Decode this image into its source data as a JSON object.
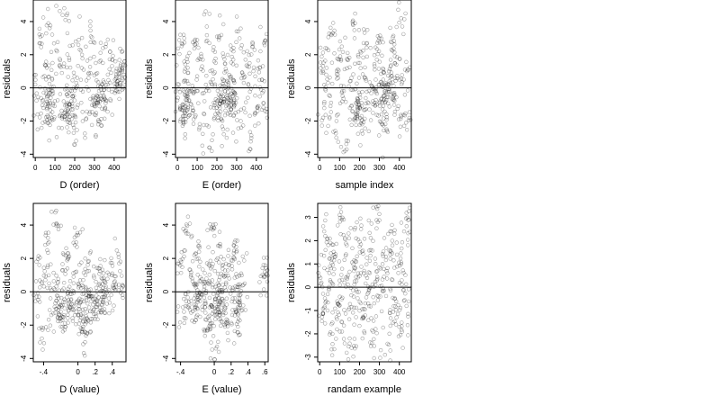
{
  "figure": {
    "background": "#ffffff",
    "point_color": "#000000",
    "point_opacity": 0.38,
    "reference_line_color": "#000000"
  },
  "chart_data": [
    {
      "type": "scatter",
      "xlabel": "D (order)",
      "ylabel": "residuals",
      "xlim": [
        -10,
        460
      ],
      "ylim": [
        -4.2,
        5.3
      ],
      "xticks": [
        0,
        100,
        200,
        300,
        400
      ],
      "yticks": [
        -4,
        -2,
        0,
        2,
        4
      ],
      "hline": 0,
      "n_points": 460,
      "pattern": "ordered residuals forming rising diagonal streaks",
      "points": [
        [
          0,
          0.2
        ],
        [
          12,
          -1.6
        ],
        [
          24,
          2.7
        ],
        [
          37,
          -0.8
        ],
        [
          49,
          1.4
        ],
        [
          61,
          -2.1
        ],
        [
          73,
          3.6
        ],
        [
          86,
          0.5
        ],
        [
          98,
          -1.1
        ],
        [
          110,
          2.2
        ],
        [
          123,
          -1.7
        ],
        [
          135,
          0.9
        ],
        [
          147,
          4.8
        ],
        [
          159,
          -0.4
        ],
        [
          172,
          1.8
        ],
        [
          184,
          -1.3
        ],
        [
          196,
          -2.4
        ],
        [
          208,
          0.3
        ],
        [
          221,
          2.9
        ],
        [
          233,
          -0.9
        ],
        [
          245,
          1.1
        ],
        [
          257,
          -1.9
        ],
        [
          270,
          0.6
        ],
        [
          282,
          3.1
        ],
        [
          294,
          -0.5
        ],
        [
          306,
          1.5
        ],
        [
          319,
          -2.2
        ],
        [
          331,
          0.1
        ],
        [
          343,
          2.4
        ],
        [
          355,
          -1.2
        ],
        [
          368,
          0.8
        ],
        [
          380,
          -0.7
        ],
        [
          392,
          1.7
        ],
        [
          404,
          -0.3
        ],
        [
          417,
          0.4
        ],
        [
          429,
          0.9
        ],
        [
          441,
          1.2
        ],
        [
          453,
          1.6
        ],
        [
          60,
          -1.2
        ],
        [
          66,
          -1.0
        ],
        [
          72,
          -0.8
        ],
        [
          78,
          -0.6
        ],
        [
          84,
          -0.4
        ],
        [
          150,
          -1.9
        ],
        [
          158,
          -1.6
        ],
        [
          166,
          -1.3
        ],
        [
          174,
          -1.0
        ],
        [
          182,
          -0.8
        ],
        [
          190,
          -0.5
        ],
        [
          300,
          -1.1
        ],
        [
          310,
          -0.9
        ],
        [
          320,
          -0.7
        ],
        [
          330,
          -0.5
        ],
        [
          340,
          -0.3
        ],
        [
          350,
          -0.1
        ],
        [
          420,
          0.1
        ],
        [
          430,
          0.3
        ],
        [
          440,
          0.6
        ]
      ]
    },
    {
      "type": "scatter",
      "xlabel": "E (order)",
      "ylabel": "residuals",
      "xlim": [
        -10,
        460
      ],
      "ylim": [
        -4.2,
        5.3
      ],
      "xticks": [
        0,
        100,
        200,
        300,
        400
      ],
      "yticks": [
        -4,
        -2,
        0,
        2,
        4
      ],
      "hline": 0,
      "n_points": 460,
      "pattern": "ordered residuals with short diagonal streaks",
      "points": [
        [
          2,
          -0.6
        ],
        [
          14,
          3.2
        ],
        [
          27,
          -1.7
        ],
        [
          39,
          0.4
        ],
        [
          51,
          1.9
        ],
        [
          63,
          -0.2
        ],
        [
          76,
          -1.5
        ],
        [
          88,
          2.6
        ],
        [
          100,
          0.7
        ],
        [
          112,
          -2.4
        ],
        [
          125,
          1.3
        ],
        [
          137,
          -0.8
        ],
        [
          149,
          3.7
        ],
        [
          161,
          -3.6
        ],
        [
          174,
          0.2
        ],
        [
          186,
          1.6
        ],
        [
          198,
          -1.2
        ],
        [
          210,
          2.9
        ],
        [
          223,
          -0.4
        ],
        [
          235,
          -2.8
        ],
        [
          247,
          1.0
        ],
        [
          259,
          0.3
        ],
        [
          272,
          -1.3
        ],
        [
          284,
          2.2
        ],
        [
          296,
          -0.9
        ],
        [
          308,
          3.4
        ],
        [
          321,
          -2.0
        ],
        [
          333,
          0.8
        ],
        [
          345,
          1.7
        ],
        [
          357,
          -0.6
        ],
        [
          370,
          -3.7
        ],
        [
          382,
          2.5
        ],
        [
          394,
          0.1
        ],
        [
          406,
          -1.4
        ],
        [
          419,
          1.2
        ],
        [
          431,
          -0.3
        ],
        [
          443,
          2.8
        ],
        [
          455,
          -1.8
        ],
        [
          30,
          -1.7
        ],
        [
          36,
          -1.4
        ],
        [
          42,
          -1.1
        ],
        [
          48,
          -0.8
        ],
        [
          54,
          -0.5
        ],
        [
          200,
          -1.4
        ],
        [
          210,
          -1.1
        ],
        [
          220,
          -0.8
        ],
        [
          230,
          -0.5
        ],
        [
          240,
          -0.2
        ],
        [
          260,
          -0.9
        ],
        [
          270,
          -0.7
        ],
        [
          280,
          -0.5
        ],
        [
          290,
          -0.3
        ]
      ]
    },
    {
      "type": "scatter",
      "xlabel": "sample index",
      "ylabel": "residuals",
      "xlim": [
        -10,
        460
      ],
      "ylim": [
        -4.2,
        5.3
      ],
      "xticks": [
        0,
        100,
        200,
        300,
        400
      ],
      "yticks": [
        -4,
        -2,
        0,
        2,
        4
      ],
      "hline": 0,
      "n_points": 460,
      "pattern": "residuals against sample index",
      "points": [
        [
          5,
          1.2
        ],
        [
          17,
          -1.8
        ],
        [
          29,
          2.4
        ],
        [
          42,
          0.3
        ],
        [
          54,
          -1.1
        ],
        [
          66,
          3.3
        ],
        [
          78,
          -2.6
        ],
        [
          91,
          0.8
        ],
        [
          103,
          1.9
        ],
        [
          115,
          -0.5
        ],
        [
          128,
          -3.8
        ],
        [
          140,
          2.1
        ],
        [
          152,
          0.4
        ],
        [
          164,
          -1.4
        ],
        [
          177,
          3.9
        ],
        [
          189,
          -0.8
        ],
        [
          201,
          1.5
        ],
        [
          213,
          -2.2
        ],
        [
          226,
          0.6
        ],
        [
          238,
          2.7
        ],
        [
          250,
          -1.3
        ],
        [
          262,
          0.1
        ],
        [
          275,
          -0.9
        ],
        [
          287,
          1.7
        ],
        [
          299,
          3.0
        ],
        [
          311,
          -1.6
        ],
        [
          324,
          0.9
        ],
        [
          336,
          -2.5
        ],
        [
          348,
          0.2
        ],
        [
          360,
          2.3
        ],
        [
          373,
          -0.7
        ],
        [
          385,
          1.4
        ],
        [
          397,
          -1.9
        ],
        [
          409,
          4.2
        ],
        [
          422,
          0.5
        ],
        [
          434,
          -2.1
        ],
        [
          446,
          1.1
        ],
        [
          300,
          -0.9
        ],
        [
          310,
          -0.7
        ],
        [
          320,
          -0.5
        ],
        [
          330,
          -0.2
        ],
        [
          340,
          0.1
        ],
        [
          350,
          0.4
        ],
        [
          360,
          0.7
        ],
        [
          180,
          -1.8
        ],
        [
          190,
          -1.5
        ],
        [
          200,
          -1.2
        ],
        [
          210,
          -0.9
        ]
      ]
    },
    {
      "type": "scatter",
      "xlabel": "D (value)",
      "ylabel": "residuals",
      "xlim": [
        -0.52,
        0.56
      ],
      "ylim": [
        -4.2,
        5.3
      ],
      "xticks": [
        -0.4,
        0.0,
        0.2,
        0.4
      ],
      "yticks": [
        -4,
        -2,
        0,
        2,
        4
      ],
      "hline": 0,
      "n_points": 460,
      "pattern": "residuals in vertical columns at discrete D values",
      "points": [
        [
          -0.48,
          -0.3
        ],
        [
          -0.45,
          1.6
        ],
        [
          -0.42,
          -2.8
        ],
        [
          -0.38,
          0.7
        ],
        [
          -0.35,
          2.9
        ],
        [
          -0.31,
          -1.4
        ],
        [
          -0.28,
          0.2
        ],
        [
          -0.25,
          4.1
        ],
        [
          -0.22,
          -0.9
        ],
        [
          -0.18,
          1.3
        ],
        [
          -0.15,
          -1.9
        ],
        [
          -0.12,
          2.3
        ],
        [
          -0.08,
          -0.5
        ],
        [
          -0.05,
          0.9
        ],
        [
          -0.02,
          -1.2
        ],
        [
          0.0,
          3.4
        ],
        [
          0.02,
          -0.7
        ],
        [
          0.05,
          0.4
        ],
        [
          0.08,
          -2.4
        ],
        [
          0.12,
          1.8
        ],
        [
          0.15,
          -0.3
        ],
        [
          0.18,
          -1.1
        ],
        [
          0.21,
          0.6
        ],
        [
          0.25,
          1.4
        ],
        [
          0.28,
          -0.8
        ],
        [
          0.32,
          0.2
        ],
        [
          0.36,
          -0.4
        ],
        [
          0.4,
          1.1
        ],
        [
          0.44,
          0.3
        ],
        [
          0.48,
          1.7
        ],
        [
          0.52,
          -0.2
        ],
        [
          -0.2,
          -1.6
        ],
        [
          -0.2,
          -1.2
        ],
        [
          -0.2,
          -0.8
        ],
        [
          -0.1,
          -0.9
        ],
        [
          -0.1,
          -0.6
        ],
        [
          0.06,
          -2.1
        ],
        [
          0.06,
          -1.8
        ],
        [
          0.06,
          -1.5
        ],
        [
          0.1,
          -0.5
        ],
        [
          0.1,
          -0.2
        ],
        [
          0.22,
          -0.9
        ],
        [
          0.22,
          -0.6
        ],
        [
          0.3,
          -0.3
        ],
        [
          0.3,
          0.0
        ]
      ]
    },
    {
      "type": "scatter",
      "xlabel": "E (value)",
      "ylabel": "residuals",
      "xlim": [
        -0.46,
        0.64
      ],
      "ylim": [
        -4.2,
        5.3
      ],
      "xticks": [
        -0.4,
        0.0,
        0.2,
        0.4,
        0.6
      ],
      "yticks": [
        -4,
        -2,
        0,
        2,
        4
      ],
      "hline": 0,
      "n_points": 460,
      "pattern": "residuals in vertical columns at discrete E values",
      "points": [
        [
          -0.4,
          1.9
        ],
        [
          -0.36,
          -1.2
        ],
        [
          -0.33,
          3.5
        ],
        [
          -0.3,
          -0.6
        ],
        [
          -0.26,
          0.8
        ],
        [
          -0.22,
          -1.7
        ],
        [
          -0.18,
          2.4
        ],
        [
          -0.15,
          -0.2
        ],
        [
          -0.12,
          0.6
        ],
        [
          -0.08,
          -2.3
        ],
        [
          -0.04,
          1.4
        ],
        [
          -0.02,
          -0.9
        ],
        [
          0.0,
          3.8
        ],
        [
          0.02,
          -3.4
        ],
        [
          0.04,
          0.5
        ],
        [
          0.06,
          -1.4
        ],
        [
          0.08,
          2.1
        ],
        [
          0.1,
          -0.7
        ],
        [
          0.12,
          0.9
        ],
        [
          0.14,
          -1.9
        ],
        [
          0.18,
          1.6
        ],
        [
          0.22,
          -0.4
        ],
        [
          0.26,
          2.7
        ],
        [
          0.28,
          -2.1
        ],
        [
          0.3,
          0.3
        ],
        [
          0.32,
          1.1
        ],
        [
          0.6,
          1.2
        ],
        [
          0.6,
          0.9
        ],
        [
          -0.2,
          -0.2
        ],
        [
          -0.2,
          0.1
        ],
        [
          -0.1,
          -0.7
        ],
        [
          0.05,
          -1.2
        ],
        [
          0.05,
          -0.8
        ],
        [
          0.05,
          -0.4
        ],
        [
          0.28,
          -1.3
        ],
        [
          0.28,
          -0.6
        ]
      ]
    },
    {
      "type": "scatter",
      "xlabel": "randam example",
      "ylabel": "residuals",
      "xlim": [
        -10,
        460
      ],
      "ylim": [
        -3.2,
        3.6
      ],
      "xticks": [
        0,
        100,
        200,
        300,
        400
      ],
      "yticks": [
        -3,
        -2,
        -1,
        0,
        1,
        2,
        3
      ],
      "hline": 0,
      "n_points": 460,
      "pattern": "random normal residuals",
      "points": [
        [
          4,
          0.4
        ],
        [
          16,
          -1.1
        ],
        [
          28,
          2.2
        ],
        [
          40,
          -0.3
        ],
        [
          52,
          0.9
        ],
        [
          64,
          -2.0
        ],
        [
          76,
          1.3
        ],
        [
          88,
          -0.6
        ],
        [
          100,
          3.1
        ],
        [
          112,
          -1.5
        ],
        [
          124,
          0.2
        ],
        [
          136,
          1.8
        ],
        [
          148,
          -0.9
        ],
        [
          160,
          -2.6
        ],
        [
          172,
          0.7
        ],
        [
          184,
          1.1
        ],
        [
          196,
          -0.2
        ],
        [
          208,
          2.5
        ],
        [
          220,
          -1.3
        ],
        [
          232,
          0.5
        ],
        [
          244,
          -0.7
        ],
        [
          256,
          1.6
        ],
        [
          268,
          -1.9
        ],
        [
          280,
          0.1
        ],
        [
          292,
          2.8
        ],
        [
          304,
          -0.4
        ],
        [
          316,
          1.0
        ],
        [
          328,
          -2.9
        ],
        [
          340,
          0.6
        ],
        [
          352,
          -1.1
        ],
        [
          364,
          2.0
        ],
        [
          376,
          -0.5
        ],
        [
          388,
          1.4
        ],
        [
          400,
          -1.7
        ],
        [
          412,
          0.3
        ],
        [
          424,
          2.4
        ],
        [
          436,
          -0.8
        ],
        [
          448,
          2.9
        ]
      ]
    }
  ]
}
